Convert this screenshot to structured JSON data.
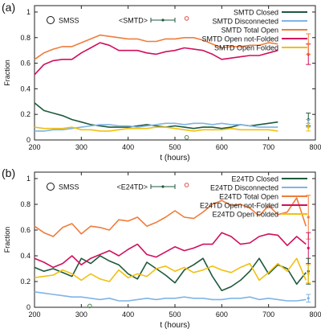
{
  "chart_data": [
    {
      "panel_label": "(a)",
      "type": "line",
      "xlabel": "t (hours)",
      "ylabel": "Fraction",
      "xlim": [
        200,
        800
      ],
      "ylim": [
        0,
        1.05
      ],
      "xticks": [
        "200",
        "300",
        "400",
        "500",
        "600",
        "700",
        "800"
      ],
      "yticks": [
        "0",
        "0.2",
        "0.4",
        "0.6",
        "0.8",
        "1"
      ],
      "grid": false,
      "legend_position": "top-right",
      "smss_label": "SMSS",
      "avg_label": "<SMTD>",
      "x": [
        200,
        220,
        240,
        260,
        280,
        300,
        320,
        340,
        360,
        380,
        400,
        420,
        440,
        460,
        480,
        500,
        520,
        540,
        560,
        580,
        600,
        620,
        640,
        660,
        680,
        700,
        720
      ],
      "series": [
        {
          "name": "SMTD Closed",
          "color": "#1e5a3c",
          "values": [
            0.29,
            0.23,
            0.21,
            0.19,
            0.16,
            0.14,
            0.12,
            0.11,
            0.1,
            0.1,
            0.1,
            0.11,
            0.12,
            0.11,
            0.1,
            0.11,
            0.1,
            0.09,
            0.1,
            0.1,
            0.09,
            0.1,
            0.12,
            0.11,
            0.12,
            0.13,
            0.14
          ]
        },
        {
          "name": "SMTD Disconnected",
          "color": "#7fb4e6",
          "values": [
            0.07,
            0.07,
            0.08,
            0.08,
            0.09,
            0.1,
            0.11,
            0.12,
            0.12,
            0.11,
            0.11,
            0.1,
            0.11,
            0.12,
            0.13,
            0.13,
            0.12,
            0.13,
            0.13,
            0.12,
            0.13,
            0.12,
            0.12,
            0.11,
            0.1,
            0.1,
            0.1
          ]
        },
        {
          "name": "SMTD Total Open",
          "color": "#ef7d3c",
          "values": [
            0.63,
            0.68,
            0.71,
            0.73,
            0.73,
            0.76,
            0.79,
            0.82,
            0.81,
            0.8,
            0.79,
            0.79,
            0.77,
            0.77,
            0.79,
            0.79,
            0.8,
            0.8,
            0.78,
            0.75,
            0.72,
            0.73,
            0.73,
            0.74,
            0.74,
            0.76,
            0.75
          ]
        },
        {
          "name": "SMTD Open not-Folded",
          "color": "#d0105e",
          "values": [
            0.51,
            0.59,
            0.62,
            0.63,
            0.63,
            0.68,
            0.72,
            0.76,
            0.74,
            0.7,
            0.7,
            0.7,
            0.68,
            0.67,
            0.69,
            0.7,
            0.72,
            0.71,
            0.7,
            0.67,
            0.63,
            0.64,
            0.65,
            0.66,
            0.66,
            0.68,
            0.7
          ]
        },
        {
          "name": "SMTD Open Folded",
          "color": "#f0c010",
          "values": [
            0.1,
            0.09,
            0.09,
            0.09,
            0.1,
            0.08,
            0.08,
            0.07,
            0.07,
            0.08,
            0.09,
            0.09,
            0.09,
            0.1,
            0.1,
            0.09,
            0.08,
            0.07,
            0.08,
            0.08,
            0.08,
            0.09,
            0.08,
            0.08,
            0.08,
            0.08,
            0.07
          ]
        }
      ],
      "smss_points": [
        {
          "x": 525,
          "y": 0.95,
          "color": "#e05050"
        },
        {
          "x": 525,
          "y": 0.02,
          "color": "#558855"
        }
      ],
      "averages": {
        "x": 785,
        "points": [
          {
            "y": 0.67,
            "err": 0.08,
            "color": "#d0105e"
          },
          {
            "y": 0.75,
            "err": 0.08,
            "color": "#ef7d3c"
          },
          {
            "y": 0.16,
            "err": 0.05,
            "color": "#1e5a3c"
          },
          {
            "y": 0.13,
            "err": 0.03,
            "color": "#7fb4e6"
          },
          {
            "y": 0.1,
            "err": 0.03,
            "color": "#f0c010"
          }
        ]
      }
    },
    {
      "panel_label": "(b)",
      "type": "line",
      "xlabel": "t (hours)",
      "ylabel": "Fraction",
      "xlim": [
        200,
        800
      ],
      "ylim": [
        0,
        1.05
      ],
      "xticks": [
        "200",
        "300",
        "400",
        "500",
        "600",
        "700",
        "800"
      ],
      "yticks": [
        "0",
        "0.2",
        "0.4",
        "0.6",
        "0.8",
        "1"
      ],
      "grid": false,
      "legend_position": "top-right",
      "smss_label": "SMSS",
      "avg_label": "<E24TD>",
      "x": [
        200,
        220,
        240,
        260,
        280,
        300,
        320,
        340,
        360,
        380,
        400,
        420,
        440,
        460,
        480,
        500,
        520,
        540,
        560,
        580,
        600,
        620,
        640,
        660,
        680,
        700,
        720,
        740,
        760,
        780
      ],
      "series": [
        {
          "name": "E24TD Closed",
          "color": "#1e5a3c",
          "values": [
            0.31,
            0.28,
            0.3,
            0.27,
            0.24,
            0.38,
            0.34,
            0.4,
            0.36,
            0.33,
            0.26,
            0.22,
            0.35,
            0.3,
            0.25,
            0.19,
            0.29,
            0.33,
            0.38,
            0.24,
            0.13,
            0.16,
            0.21,
            0.28,
            0.38,
            0.26,
            0.33,
            0.3,
            0.18,
            0.27
          ]
        },
        {
          "name": "E24TD Disconnected",
          "color": "#7fb4e6",
          "values": [
            0.12,
            0.11,
            0.1,
            0.09,
            0.08,
            0.08,
            0.07,
            0.06,
            0.07,
            0.05,
            0.05,
            0.06,
            0.07,
            0.06,
            0.07,
            0.07,
            0.08,
            0.07,
            0.07,
            0.06,
            0.06,
            0.07,
            0.07,
            0.08,
            0.06,
            0.07,
            0.06,
            0.05,
            0.05,
            0.06
          ]
        },
        {
          "name": "E24TD Total Open",
          "color": "#ef7d3c",
          "values": [
            0.63,
            0.58,
            0.55,
            0.62,
            0.65,
            0.57,
            0.63,
            0.62,
            0.6,
            0.68,
            0.67,
            0.7,
            0.63,
            0.66,
            0.7,
            0.75,
            0.7,
            0.69,
            0.74,
            0.8,
            0.83,
            0.79,
            0.8,
            0.77,
            0.71,
            0.79,
            0.72,
            0.74,
            0.85,
            0.63
          ]
        },
        {
          "name": "E24TD Open not-Folded",
          "color": "#d0105e",
          "values": [
            0.38,
            0.35,
            0.31,
            0.34,
            0.4,
            0.33,
            0.38,
            0.41,
            0.44,
            0.4,
            0.45,
            0.49,
            0.41,
            0.39,
            0.43,
            0.47,
            0.44,
            0.46,
            0.49,
            0.49,
            0.58,
            0.55,
            0.49,
            0.5,
            0.55,
            0.57,
            0.56,
            0.48,
            0.55,
            0.49
          ]
        },
        {
          "name": "E24TD Open Folded",
          "color": "#f0c010",
          "values": [
            0.23,
            0.24,
            0.25,
            0.29,
            0.26,
            0.21,
            0.26,
            0.22,
            0.2,
            0.29,
            0.23,
            0.26,
            0.24,
            0.3,
            0.32,
            0.28,
            0.31,
            0.27,
            0.29,
            0.32,
            0.29,
            0.27,
            0.31,
            0.34,
            0.21,
            0.27,
            0.34,
            0.28,
            0.38,
            0.21
          ]
        }
      ],
      "smss_points": [
        {
          "x": 525,
          "y": 0.95,
          "color": "#e05050"
        },
        {
          "x": 318,
          "y": 0.01,
          "color": "#558855"
        }
      ],
      "averages": {
        "x": 785,
        "points": [
          {
            "y": 0.7,
            "err": 0.17,
            "color": "#ef7d3c"
          },
          {
            "y": 0.46,
            "err": 0.12,
            "color": "#d0105e"
          },
          {
            "y": 0.28,
            "err": 0.1,
            "color": "#1e5a3c"
          },
          {
            "y": 0.26,
            "err": 0.07,
            "color": "#f0c010"
          },
          {
            "y": 0.07,
            "err": 0.03,
            "color": "#7fb4e6"
          }
        ]
      }
    }
  ]
}
